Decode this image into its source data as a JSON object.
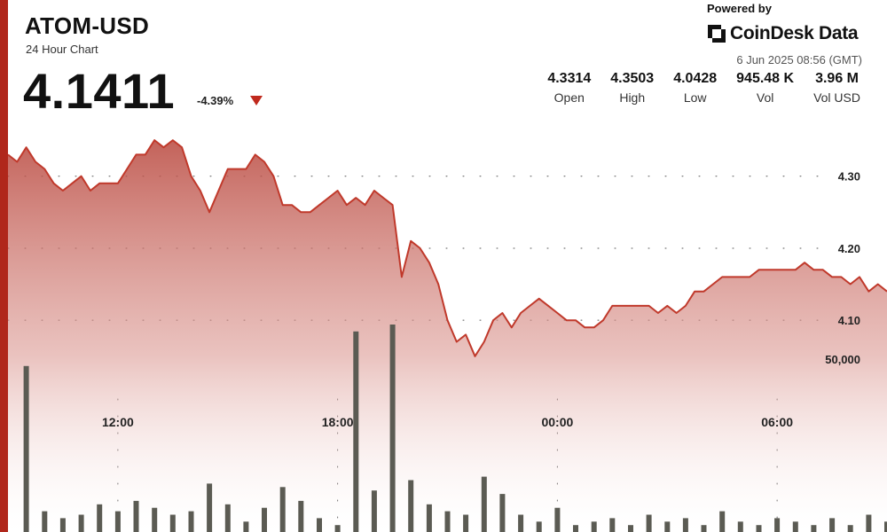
{
  "header": {
    "symbol": "ATOM-USD",
    "subtitle": "24 Hour Chart",
    "price": "4.1411",
    "change": "-4.39%"
  },
  "brand": {
    "powered_by": "Powered by",
    "name": "CoinDesk Data",
    "timestamp": "6 Jun 2025 08:56 (GMT)"
  },
  "stats": [
    {
      "value": "4.3314",
      "label": "Open"
    },
    {
      "value": "4.3503",
      "label": "High"
    },
    {
      "value": "4.0428",
      "label": "Low"
    },
    {
      "value": "945.48 K",
      "label": "Vol"
    },
    {
      "value": "3.96 M",
      "label": "Vol USD"
    }
  ],
  "colors": {
    "accent": "#b0271b",
    "line": "#c0392b",
    "volume_bar": "#5b5b53",
    "area_top": "#c46b63"
  },
  "chart_data": [
    {
      "type": "area",
      "series": [
        {
          "name": "",
          "x": [
            0,
            0.25,
            0.5,
            0.75,
            1,
            1.25,
            1.5,
            1.75,
            2,
            2.25,
            2.5,
            2.75,
            3,
            3.25,
            3.5,
            3.75,
            4,
            4.25,
            4.5,
            4.75,
            5,
            5.25,
            5.5,
            5.75,
            6,
            6.25,
            6.5,
            6.75,
            7,
            7.25,
            7.5,
            7.75,
            8,
            8.25,
            8.5,
            8.75,
            9,
            9.25,
            9.5,
            9.75,
            10,
            10.25,
            10.5,
            10.75,
            11,
            11.25,
            11.5,
            11.75,
            12,
            12.25,
            12.5,
            12.75,
            13,
            13.25,
            13.5,
            13.75,
            14,
            14.25,
            14.5,
            14.75,
            15,
            15.25,
            15.5,
            15.75,
            16,
            16.25,
            16.5,
            16.75,
            17,
            17.25,
            17.5,
            17.75,
            18,
            18.25,
            18.5,
            18.75,
            19,
            19.25,
            19.5,
            19.75,
            20,
            20.25,
            20.5,
            20.75,
            21,
            21.25,
            21.5,
            21.75,
            22,
            22.25,
            22.5,
            22.75,
            23,
            23.25,
            23.5,
            23.75,
            24
          ],
          "values": [
            4.33,
            4.32,
            4.34,
            4.32,
            4.31,
            4.29,
            4.28,
            4.29,
            4.3,
            4.28,
            4.29,
            4.29,
            4.29,
            4.31,
            4.33,
            4.33,
            4.35,
            4.34,
            4.35,
            4.34,
            4.3,
            4.28,
            4.25,
            4.28,
            4.31,
            4.31,
            4.31,
            4.33,
            4.32,
            4.3,
            4.26,
            4.26,
            4.25,
            4.25,
            4.26,
            4.27,
            4.28,
            4.26,
            4.27,
            4.26,
            4.28,
            4.27,
            4.26,
            4.16,
            4.21,
            4.2,
            4.18,
            4.15,
            4.1,
            4.07,
            4.08,
            4.05,
            4.07,
            4.1,
            4.11,
            4.09,
            4.11,
            4.12,
            4.13,
            4.12,
            4.11,
            4.1,
            4.1,
            4.09,
            4.09,
            4.1,
            4.12,
            4.12,
            4.12,
            4.12,
            4.12,
            4.11,
            4.12,
            4.11,
            4.12,
            4.14,
            4.14,
            4.15,
            4.16,
            4.16,
            4.16,
            4.16,
            4.17,
            4.17,
            4.17,
            4.17,
            4.17,
            4.18,
            4.17,
            4.17,
            4.16,
            4.16,
            4.15,
            4.16,
            4.14,
            4.15,
            4.14
          ]
        }
      ],
      "ylim": [
        4.03,
        4.36
      ],
      "xlim": [
        0,
        24
      ],
      "y_ticks": [
        4.1,
        4.2,
        4.3
      ],
      "y_tick_labels": [
        "4.10",
        "4.20",
        "4.30"
      ],
      "x_ticks": [
        3,
        9,
        15,
        21
      ],
      "x_tick_labels": [
        "12:00",
        "18:00",
        "00:00",
        "06:00"
      ],
      "grid": true
    },
    {
      "type": "bar",
      "series": [
        {
          "name": "",
          "x": [
            0.5,
            1,
            1.5,
            2,
            2.5,
            3,
            3.5,
            4,
            4.5,
            5,
            5.5,
            6,
            6.5,
            7,
            7.5,
            8,
            8.5,
            9,
            9.5,
            10,
            10.5,
            11,
            11.5,
            12,
            12.5,
            13,
            13.5,
            14,
            14.5,
            15,
            15.5,
            16,
            16.5,
            17,
            17.5,
            18,
            18.5,
            19,
            19.5,
            20,
            20.5,
            21,
            21.5,
            22,
            22.5,
            23,
            23.5,
            24
          ],
          "values": [
            48000,
            6000,
            4000,
            5000,
            8000,
            6000,
            9000,
            7000,
            5000,
            6000,
            14000,
            8000,
            3000,
            7000,
            13000,
            9000,
            4000,
            2000,
            58000,
            12000,
            60000,
            15000,
            8000,
            6000,
            5000,
            16000,
            11000,
            5000,
            3000,
            7000,
            2000,
            3000,
            4000,
            2000,
            5000,
            3000,
            4000,
            2000,
            6000,
            3000,
            2000,
            4000,
            3000,
            2000,
            4000,
            2000,
            5000,
            3000
          ]
        }
      ],
      "ylim": [
        0,
        60000
      ],
      "y_ticks": [
        50000
      ],
      "y_tick_labels": [
        "50,000"
      ]
    }
  ]
}
